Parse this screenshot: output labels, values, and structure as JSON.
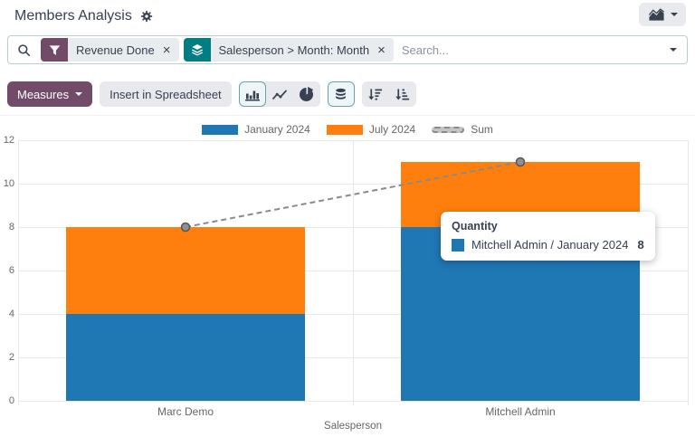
{
  "header": {
    "title": "Members Analysis"
  },
  "search": {
    "facets": [
      {
        "icon": "filter-icon",
        "label": "Revenue Done"
      },
      {
        "icon": "layers-icon",
        "label": "Salesperson > Month: Month"
      }
    ],
    "placeholder": "Search..."
  },
  "toolbar": {
    "measures_label": "Measures",
    "insert_spreadsheet_label": "Insert in Spreadsheet"
  },
  "icons": {
    "close": "×"
  },
  "tooltip": {
    "title": "Quantity",
    "rows": [
      {
        "swatch_color": "#1f77b4",
        "label": "Mitchell Admin / January 2024",
        "value": "8"
      }
    ]
  },
  "chart_data": {
    "type": "bar",
    "stacked": true,
    "categories": [
      "Marc Demo",
      "Mitchell Admin"
    ],
    "series": [
      {
        "name": "January 2024",
        "color": "#1f77b4",
        "values": [
          4,
          8
        ]
      },
      {
        "name": "July 2024",
        "color": "#ff7f0e",
        "values": [
          4,
          3
        ]
      }
    ],
    "line_series": [
      {
        "name": "Sum",
        "color": "#8a8a8a",
        "style": "dashed",
        "values": [
          8,
          11
        ]
      }
    ],
    "xlabel": "Salesperson",
    "ylabel": "",
    "ylim": [
      0,
      12
    ],
    "ytick_step": 2,
    "legend_position": "top",
    "grid": true
  },
  "colors": {
    "primary_purple": "#714B67",
    "groupby_teal": "#017e84",
    "active_toggle_border": "#63a5a9",
    "bar_blue": "#1f77b4",
    "bar_orange": "#ff7f0e"
  }
}
